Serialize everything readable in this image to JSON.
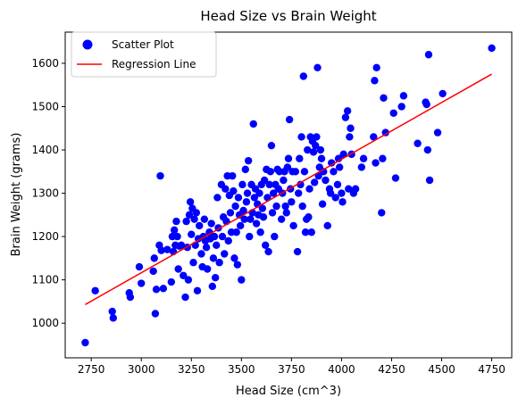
{
  "chart_data": {
    "type": "scatter",
    "title": "Head Size vs Brain Weight",
    "xlabel": "Head Size (cm^3)",
    "ylabel": "Brain Weight (grams)",
    "xlim": [
      2620,
      4850
    ],
    "ylim": [
      920,
      1672
    ],
    "xticks": [
      2750,
      3000,
      3250,
      3500,
      3750,
      4000,
      4250,
      4500,
      4750
    ],
    "yticks": [
      1000,
      1100,
      1200,
      1300,
      1400,
      1500,
      1600
    ],
    "grid": false,
    "legend": {
      "position": "top-left",
      "entries": [
        "Scatter Plot",
        "Regression Line"
      ]
    },
    "series": [
      {
        "name": "Scatter Plot",
        "kind": "scatter",
        "color": "#0000ff",
        "points": [
          [
            2720,
            955
          ],
          [
            2770,
            1075
          ],
          [
            2855,
            1027
          ],
          [
            2860,
            1012
          ],
          [
            2940,
            1070
          ],
          [
            2945,
            1060
          ],
          [
            2990,
            1130
          ],
          [
            3000,
            1092
          ],
          [
            3060,
            1120
          ],
          [
            3065,
            1150
          ],
          [
            3070,
            1022
          ],
          [
            3075,
            1078
          ],
          [
            3090,
            1180
          ],
          [
            3095,
            1340
          ],
          [
            3100,
            1168
          ],
          [
            3110,
            1080
          ],
          [
            3130,
            1170
          ],
          [
            3150,
            1095
          ],
          [
            3155,
            1200
          ],
          [
            3160,
            1165
          ],
          [
            3165,
            1215
          ],
          [
            3170,
            1180
          ],
          [
            3175,
            1235
          ],
          [
            3180,
            1200
          ],
          [
            3185,
            1125
          ],
          [
            3190,
            1178
          ],
          [
            3200,
            1180
          ],
          [
            3210,
            1110
          ],
          [
            3220,
            1060
          ],
          [
            3225,
            1235
          ],
          [
            3230,
            1175
          ],
          [
            3235,
            1100
          ],
          [
            3240,
            1250
          ],
          [
            3245,
            1280
          ],
          [
            3250,
            1205
          ],
          [
            3255,
            1265
          ],
          [
            3260,
            1140
          ],
          [
            3265,
            1240
          ],
          [
            3270,
            1180
          ],
          [
            3275,
            1255
          ],
          [
            3280,
            1075
          ],
          [
            3285,
            1195
          ],
          [
            3290,
            1225
          ],
          [
            3300,
            1160
          ],
          [
            3305,
            1130
          ],
          [
            3310,
            1200
          ],
          [
            3315,
            1240
          ],
          [
            3320,
            1190
          ],
          [
            3325,
            1175
          ],
          [
            3330,
            1125
          ],
          [
            3340,
            1210
          ],
          [
            3345,
            1195
          ],
          [
            3350,
            1230
          ],
          [
            3355,
            1085
          ],
          [
            3360,
            1150
          ],
          [
            3365,
            1200
          ],
          [
            3370,
            1105
          ],
          [
            3375,
            1180
          ],
          [
            3380,
            1290
          ],
          [
            3385,
            1220
          ],
          [
            3390,
            1140
          ],
          [
            3400,
            1320
          ],
          [
            3405,
            1200
          ],
          [
            3410,
            1245
          ],
          [
            3415,
            1160
          ],
          [
            3420,
            1310
          ],
          [
            3425,
            1235
          ],
          [
            3430,
            1340
          ],
          [
            3435,
            1190
          ],
          [
            3440,
            1295
          ],
          [
            3445,
            1255
          ],
          [
            3450,
            1210
          ],
          [
            3455,
            1340
          ],
          [
            3460,
            1305
          ],
          [
            3465,
            1150
          ],
          [
            3470,
            1270
          ],
          [
            3475,
            1210
          ],
          [
            3480,
            1135
          ],
          [
            3485,
            1290
          ],
          [
            3490,
            1250
          ],
          [
            3495,
            1225
          ],
          [
            3500,
            1100
          ],
          [
            3505,
            1320
          ],
          [
            3510,
            1260
          ],
          [
            3515,
            1240
          ],
          [
            3520,
            1355
          ],
          [
            3525,
            1280
          ],
          [
            3530,
            1300
          ],
          [
            3535,
            1375
          ],
          [
            3540,
            1200
          ],
          [
            3545,
            1240
          ],
          [
            3550,
            1320
          ],
          [
            3555,
            1255
          ],
          [
            3560,
            1460
          ],
          [
            3565,
            1290
          ],
          [
            3570,
            1310
          ],
          [
            3575,
            1230
          ],
          [
            3580,
            1275
          ],
          [
            3585,
            1250
          ],
          [
            3590,
            1300
          ],
          [
            3595,
            1210
          ],
          [
            3600,
            1320
          ],
          [
            3605,
            1265
          ],
          [
            3610,
            1245
          ],
          [
            3615,
            1330
          ],
          [
            3620,
            1180
          ],
          [
            3625,
            1355
          ],
          [
            3630,
            1290
          ],
          [
            3635,
            1165
          ],
          [
            3640,
            1320
          ],
          [
            3645,
            1350
          ],
          [
            3650,
            1410
          ],
          [
            3655,
            1255
          ],
          [
            3660,
            1300
          ],
          [
            3665,
            1200
          ],
          [
            3670,
            1320
          ],
          [
            3675,
            1270
          ],
          [
            3680,
            1355
          ],
          [
            3685,
            1310
          ],
          [
            3690,
            1350
          ],
          [
            3700,
            1240
          ],
          [
            3705,
            1300
          ],
          [
            3710,
            1330
          ],
          [
            3715,
            1350
          ],
          [
            3720,
            1270
          ],
          [
            3725,
            1255
          ],
          [
            3730,
            1360
          ],
          [
            3735,
            1380
          ],
          [
            3740,
            1470
          ],
          [
            3745,
            1310
          ],
          [
            3750,
            1280
          ],
          [
            3755,
            1350
          ],
          [
            3760,
            1225
          ],
          [
            3770,
            1350
          ],
          [
            3780,
            1165
          ],
          [
            3785,
            1300
          ],
          [
            3790,
            1380
          ],
          [
            3795,
            1320
          ],
          [
            3800,
            1430
          ],
          [
            3805,
            1270
          ],
          [
            3810,
            1570
          ],
          [
            3815,
            1350
          ],
          [
            3820,
            1210
          ],
          [
            3825,
            1240
          ],
          [
            3830,
            1400
          ],
          [
            3835,
            1245
          ],
          [
            3840,
            1310
          ],
          [
            3845,
            1430
          ],
          [
            3850,
            1210
          ],
          [
            3855,
            1420
          ],
          [
            3860,
            1395
          ],
          [
            3865,
            1325
          ],
          [
            3870,
            1410
          ],
          [
            3875,
            1430
          ],
          [
            3880,
            1590
          ],
          [
            3885,
            1340
          ],
          [
            3890,
            1360
          ],
          [
            3895,
            1400
          ],
          [
            3900,
            1380
          ],
          [
            3905,
            1275
          ],
          [
            3910,
            1350
          ],
          [
            3920,
            1330
          ],
          [
            3930,
            1225
          ],
          [
            3940,
            1310
          ],
          [
            3945,
            1300
          ],
          [
            3950,
            1370
          ],
          [
            3960,
            1350
          ],
          [
            3970,
            1290
          ],
          [
            3980,
            1320
          ],
          [
            3985,
            1380
          ],
          [
            3990,
            1360
          ],
          [
            4000,
            1300
          ],
          [
            4005,
            1280
          ],
          [
            4010,
            1390
          ],
          [
            4020,
            1475
          ],
          [
            4030,
            1490
          ],
          [
            4035,
            1310
          ],
          [
            4040,
            1430
          ],
          [
            4045,
            1450
          ],
          [
            4050,
            1390
          ],
          [
            4060,
            1300
          ],
          [
            4070,
            1310
          ],
          [
            4100,
            1360
          ],
          [
            4110,
            1380
          ],
          [
            4160,
            1430
          ],
          [
            4165,
            1560
          ],
          [
            4170,
            1370
          ],
          [
            4175,
            1590
          ],
          [
            4200,
            1255
          ],
          [
            4205,
            1380
          ],
          [
            4210,
            1520
          ],
          [
            4220,
            1440
          ],
          [
            4260,
            1485
          ],
          [
            4270,
            1335
          ],
          [
            4300,
            1500
          ],
          [
            4310,
            1525
          ],
          [
            4380,
            1415
          ],
          [
            4420,
            1510
          ],
          [
            4425,
            1505
          ],
          [
            4430,
            1400
          ],
          [
            4435,
            1620
          ],
          [
            4440,
            1330
          ],
          [
            4480,
            1440
          ],
          [
            4505,
            1530
          ],
          [
            4750,
            1635
          ]
        ]
      },
      {
        "name": "Regression Line",
        "kind": "line",
        "color": "#ff0000",
        "points": [
          [
            2720,
            1043
          ],
          [
            4750,
            1575
          ]
        ]
      }
    ]
  }
}
